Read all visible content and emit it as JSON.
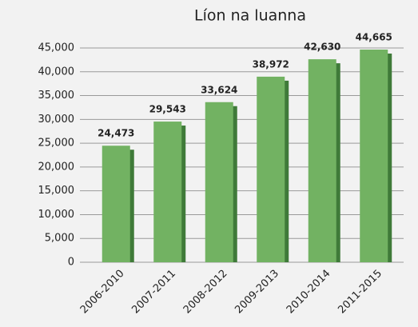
{
  "chart_data": {
    "type": "bar",
    "title": "Líon na luanna",
    "categories": [
      "2006-2010",
      "2007-2011",
      "2008-2012",
      "2009-2013",
      "2010-2014",
      "2011-2015"
    ],
    "values": [
      24473,
      29543,
      33624,
      38972,
      42630,
      44665
    ],
    "value_labels": [
      "24,473",
      "29,543",
      "33,624",
      "38,972",
      "42,630",
      "44,665"
    ],
    "color": "#72b262",
    "shadow_color": "#3f7a39",
    "ylim": [
      0,
      45000
    ],
    "yticks": [
      0,
      {
        "value": 5000,
        "label": "5,000"
      },
      {
        "value": 10000,
        "label": "10,000"
      },
      {
        "value": 15000,
        "label": "15,000"
      },
      {
        "value": 20000,
        "label": "20,000"
      },
      {
        "value": 25000,
        "label": "25,000"
      },
      {
        "value": 30000,
        "label": "30,000"
      },
      {
        "value": 35000,
        "label": "35,000"
      },
      {
        "value": 40000,
        "label": "40,000"
      },
      {
        "value": 45000,
        "label": "45,000"
      }
    ],
    "grid": true
  }
}
